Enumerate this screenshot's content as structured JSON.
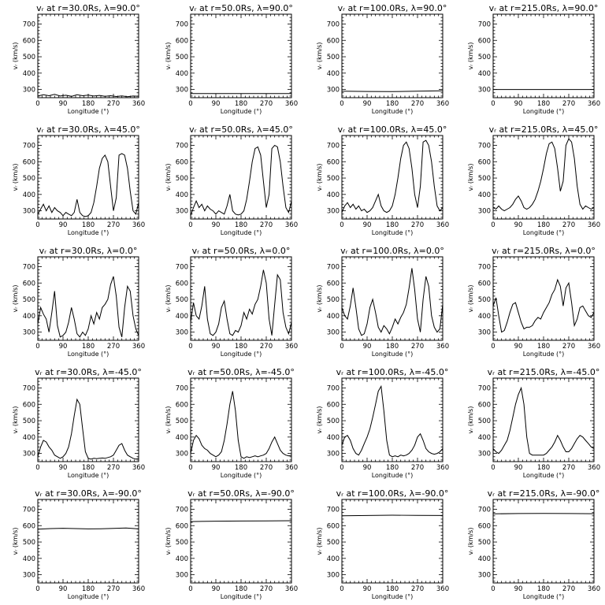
{
  "figure": {
    "xlabel": "Longitude (°)",
    "ylabel": "vᵣ (km/s)",
    "xlim": [
      0,
      360
    ],
    "ylim": [
      250,
      760
    ],
    "xticks": [
      0,
      90,
      180,
      270,
      360
    ],
    "yticks": [
      300,
      400,
      500,
      600,
      700
    ],
    "xtick_labels": [
      "0",
      "90",
      "180",
      "270",
      "360"
    ],
    "ytick_labels": [
      "300",
      "400",
      "500",
      "600",
      "700"
    ]
  },
  "chart_data": [
    {
      "type": "line",
      "title": "vᵣ at r=30.0Rs, λ=90.0°",
      "x": [
        0,
        20,
        40,
        60,
        80,
        100,
        120,
        140,
        160,
        180,
        200,
        220,
        240,
        260,
        280,
        300,
        320,
        340,
        360
      ],
      "values": [
        260,
        268,
        262,
        270,
        260,
        265,
        258,
        268,
        262,
        266,
        260,
        264,
        258,
        262,
        257,
        261,
        256,
        260,
        258
      ]
    },
    {
      "type": "line",
      "title": "vᵣ at r=50.0Rs, λ=90.0°",
      "x": [
        0,
        90,
        180,
        270,
        360
      ],
      "values": [
        275,
        275,
        275,
        275,
        275
      ]
    },
    {
      "type": "line",
      "title": "vᵣ at r=100.0Rs, λ=90.0°",
      "x": [
        0,
        90,
        180,
        270,
        360
      ],
      "values": [
        290,
        288,
        287,
        290,
        292
      ]
    },
    {
      "type": "line",
      "title": "vᵣ at r=215.0Rs, λ=90.0°",
      "x": [
        0,
        90,
        180,
        270,
        360
      ],
      "values": [
        300,
        300,
        300,
        300,
        300
      ]
    },
    {
      "type": "line",
      "title": "vᵣ at r=30.0Rs, λ=45.0°",
      "x": [
        0,
        10,
        20,
        30,
        40,
        50,
        60,
        70,
        80,
        90,
        100,
        110,
        120,
        130,
        140,
        150,
        160,
        170,
        180,
        190,
        200,
        210,
        220,
        230,
        240,
        250,
        260,
        270,
        280,
        290,
        300,
        310,
        320,
        330,
        340,
        350,
        360
      ],
      "values": [
        280,
        310,
        340,
        300,
        330,
        290,
        320,
        300,
        290,
        270,
        290,
        280,
        270,
        290,
        370,
        290,
        270,
        265,
        270,
        290,
        350,
        450,
        560,
        620,
        640,
        600,
        450,
        300,
        380,
        640,
        650,
        640,
        560,
        420,
        300,
        280,
        350
      ]
    },
    {
      "type": "line",
      "title": "vᵣ at r=50.0Rs, λ=45.0°",
      "x": [
        0,
        10,
        20,
        30,
        40,
        50,
        60,
        70,
        80,
        90,
        100,
        110,
        120,
        130,
        140,
        150,
        160,
        170,
        180,
        190,
        200,
        210,
        220,
        230,
        240,
        250,
        260,
        270,
        280,
        290,
        300,
        310,
        320,
        330,
        340,
        350,
        360
      ],
      "values": [
        270,
        320,
        360,
        320,
        340,
        300,
        330,
        310,
        300,
        280,
        300,
        290,
        280,
        330,
        400,
        300,
        280,
        275,
        280,
        300,
        370,
        480,
        600,
        680,
        690,
        640,
        480,
        320,
        400,
        680,
        700,
        690,
        600,
        450,
        320,
        290,
        360
      ]
    },
    {
      "type": "line",
      "title": "vᵣ at r=100.0Rs, λ=45.0°",
      "x": [
        0,
        10,
        20,
        30,
        40,
        50,
        60,
        70,
        80,
        90,
        100,
        110,
        120,
        130,
        140,
        150,
        160,
        170,
        180,
        190,
        200,
        210,
        220,
        230,
        240,
        250,
        260,
        270,
        280,
        290,
        300,
        310,
        320,
        330,
        340,
        350,
        360
      ],
      "values": [
        290,
        330,
        350,
        320,
        340,
        310,
        330,
        300,
        310,
        290,
        300,
        320,
        360,
        400,
        330,
        300,
        290,
        300,
        330,
        400,
        500,
        620,
        700,
        720,
        680,
        560,
        400,
        320,
        450,
        720,
        730,
        700,
        600,
        450,
        330,
        300,
        320
      ]
    },
    {
      "type": "line",
      "title": "vᵣ at r=215.0Rs, λ=45.0°",
      "x": [
        0,
        10,
        20,
        30,
        40,
        50,
        60,
        70,
        80,
        90,
        100,
        110,
        120,
        130,
        140,
        150,
        160,
        170,
        180,
        190,
        200,
        210,
        220,
        230,
        240,
        250,
        260,
        270,
        280,
        290,
        300,
        310,
        320,
        330,
        340,
        350,
        360
      ],
      "values": [
        320,
        310,
        330,
        310,
        300,
        310,
        320,
        340,
        370,
        390,
        360,
        320,
        310,
        320,
        340,
        370,
        420,
        480,
        560,
        650,
        710,
        720,
        680,
        560,
        420,
        480,
        700,
        740,
        720,
        620,
        450,
        340,
        310,
        330,
        320,
        310,
        320
      ]
    },
    {
      "type": "line",
      "title": "vᵣ at r=30.0Rs, λ=0.0°",
      "x": [
        0,
        10,
        20,
        30,
        40,
        50,
        60,
        70,
        80,
        90,
        100,
        110,
        120,
        130,
        140,
        150,
        160,
        170,
        180,
        190,
        200,
        210,
        220,
        230,
        240,
        250,
        260,
        270,
        280,
        290,
        300,
        310,
        320,
        330,
        340,
        350,
        360
      ],
      "values": [
        350,
        450,
        410,
        380,
        300,
        420,
        550,
        340,
        270,
        280,
        300,
        360,
        450,
        380,
        290,
        270,
        300,
        280,
        320,
        400,
        350,
        420,
        380,
        450,
        470,
        500,
        590,
        640,
        520,
        330,
        270,
        450,
        580,
        550,
        400,
        320,
        280
      ]
    },
    {
      "type": "line",
      "title": "vᵣ at r=50.0Rs, λ=0.0°",
      "x": [
        0,
        10,
        20,
        30,
        40,
        50,
        60,
        70,
        80,
        90,
        100,
        110,
        120,
        130,
        140,
        150,
        160,
        170,
        180,
        190,
        200,
        210,
        220,
        230,
        240,
        250,
        260,
        270,
        280,
        290,
        300,
        310,
        320,
        330,
        340,
        350,
        360
      ],
      "values": [
        360,
        480,
        400,
        380,
        460,
        580,
        380,
        290,
        280,
        300,
        350,
        450,
        490,
        380,
        290,
        280,
        310,
        300,
        340,
        420,
        380,
        440,
        410,
        470,
        500,
        580,
        680,
        600,
        380,
        280,
        470,
        650,
        620,
        420,
        330,
        290,
        360
      ]
    },
    {
      "type": "line",
      "title": "vᵣ at r=100.0Rs, λ=0.0°",
      "x": [
        0,
        10,
        20,
        30,
        40,
        50,
        60,
        70,
        80,
        90,
        100,
        110,
        120,
        130,
        140,
        150,
        160,
        170,
        180,
        190,
        200,
        210,
        220,
        230,
        240,
        250,
        260,
        270,
        280,
        290,
        300,
        310,
        320,
        330,
        340,
        350,
        360
      ],
      "values": [
        450,
        400,
        380,
        460,
        570,
        450,
        320,
        280,
        290,
        350,
        450,
        500,
        420,
        330,
        300,
        340,
        320,
        290,
        330,
        380,
        350,
        390,
        420,
        470,
        570,
        690,
        560,
        380,
        300,
        500,
        640,
        580,
        400,
        330,
        300,
        320,
        470
      ]
    },
    {
      "type": "line",
      "title": "vᵣ at r=215.0Rs, λ=0.0°",
      "x": [
        0,
        10,
        20,
        30,
        40,
        50,
        60,
        70,
        80,
        90,
        100,
        110,
        120,
        130,
        140,
        150,
        160,
        170,
        180,
        190,
        200,
        210,
        220,
        230,
        240,
        250,
        260,
        270,
        280,
        290,
        300,
        310,
        320,
        330,
        340,
        350,
        360
      ],
      "values": [
        460,
        510,
        400,
        300,
        310,
        360,
        420,
        470,
        480,
        420,
        360,
        320,
        330,
        330,
        340,
        370,
        390,
        380,
        420,
        450,
        480,
        530,
        560,
        620,
        580,
        460,
        570,
        600,
        480,
        340,
        380,
        450,
        460,
        430,
        400,
        390,
        420
      ]
    },
    {
      "type": "line",
      "title": "vᵣ at r=30.0Rs, λ=-45.0°",
      "x": [
        0,
        10,
        20,
        30,
        40,
        50,
        60,
        70,
        80,
        90,
        100,
        110,
        120,
        130,
        140,
        150,
        160,
        170,
        180,
        190,
        200,
        210,
        220,
        230,
        240,
        250,
        260,
        270,
        280,
        290,
        300,
        310,
        320,
        330,
        340,
        350,
        360
      ],
      "values": [
        280,
        340,
        380,
        370,
        340,
        320,
        290,
        280,
        270,
        280,
        300,
        340,
        420,
        530,
        630,
        600,
        450,
        310,
        270,
        265,
        270,
        268,
        270,
        272,
        270,
        275,
        280,
        290,
        320,
        350,
        360,
        320,
        290,
        280,
        270,
        265,
        270
      ]
    },
    {
      "type": "line",
      "title": "vᵣ at r=50.0Rs, λ=-45.0°",
      "x": [
        0,
        10,
        20,
        30,
        40,
        50,
        60,
        70,
        80,
        90,
        100,
        110,
        120,
        130,
        140,
        150,
        160,
        170,
        180,
        190,
        200,
        210,
        220,
        230,
        240,
        250,
        260,
        270,
        280,
        290,
        300,
        310,
        320,
        330,
        340,
        350,
        360
      ],
      "values": [
        300,
        380,
        410,
        390,
        350,
        330,
        320,
        300,
        290,
        280,
        290,
        310,
        380,
        480,
        600,
        680,
        560,
        380,
        280,
        270,
        280,
        275,
        280,
        285,
        280,
        285,
        290,
        300,
        330,
        370,
        400,
        360,
        320,
        300,
        290,
        285,
        290
      ]
    },
    {
      "type": "line",
      "title": "vᵣ at r=100.0Rs, λ=-45.0°",
      "x": [
        0,
        10,
        20,
        30,
        40,
        50,
        60,
        70,
        80,
        90,
        100,
        110,
        120,
        130,
        140,
        150,
        160,
        170,
        180,
        190,
        200,
        210,
        220,
        230,
        240,
        250,
        260,
        270,
        280,
        290,
        300,
        310,
        320,
        330,
        340,
        350,
        360
      ],
      "values": [
        350,
        400,
        410,
        380,
        330,
        300,
        290,
        320,
        360,
        400,
        450,
        520,
        600,
        680,
        710,
        560,
        380,
        290,
        280,
        285,
        280,
        290,
        285,
        290,
        300,
        320,
        350,
        400,
        420,
        380,
        330,
        310,
        300,
        295,
        300,
        310,
        330
      ]
    },
    {
      "type": "line",
      "title": "vᵣ at r=215.0Rs, λ=-45.0°",
      "x": [
        0,
        10,
        20,
        30,
        40,
        50,
        60,
        70,
        80,
        90,
        100,
        110,
        120,
        130,
        140,
        150,
        160,
        170,
        180,
        190,
        200,
        210,
        220,
        230,
        240,
        250,
        260,
        270,
        280,
        290,
        300,
        310,
        320,
        330,
        340,
        350,
        360
      ],
      "values": [
        330,
        310,
        300,
        320,
        350,
        380,
        440,
        520,
        600,
        660,
        700,
        600,
        400,
        300,
        290,
        290,
        290,
        290,
        290,
        300,
        320,
        340,
        370,
        410,
        380,
        340,
        310,
        310,
        330,
        360,
        390,
        410,
        400,
        380,
        360,
        340,
        330
      ]
    },
    {
      "type": "line",
      "title": "vᵣ at r=30.0Rs, λ=-90.0°",
      "x": [
        0,
        45,
        90,
        135,
        180,
        225,
        270,
        315,
        360
      ],
      "values": [
        578,
        582,
        584,
        582,
        580,
        581,
        583,
        586,
        580
      ]
    },
    {
      "type": "line",
      "title": "vᵣ at r=50.0Rs, λ=-90.0°",
      "x": [
        0,
        90,
        180,
        270,
        360
      ],
      "values": [
        625,
        627,
        628,
        629,
        630
      ]
    },
    {
      "type": "line",
      "title": "vᵣ at r=100.0Rs, λ=-90.0°",
      "x": [
        0,
        90,
        180,
        270,
        360
      ],
      "values": [
        660,
        662,
        664,
        663,
        662
      ]
    },
    {
      "type": "line",
      "title": "vᵣ at r=215.0Rs, λ=-90.0°",
      "x": [
        0,
        90,
        180,
        270,
        360
      ],
      "values": [
        672,
        674,
        675,
        674,
        673
      ]
    }
  ]
}
